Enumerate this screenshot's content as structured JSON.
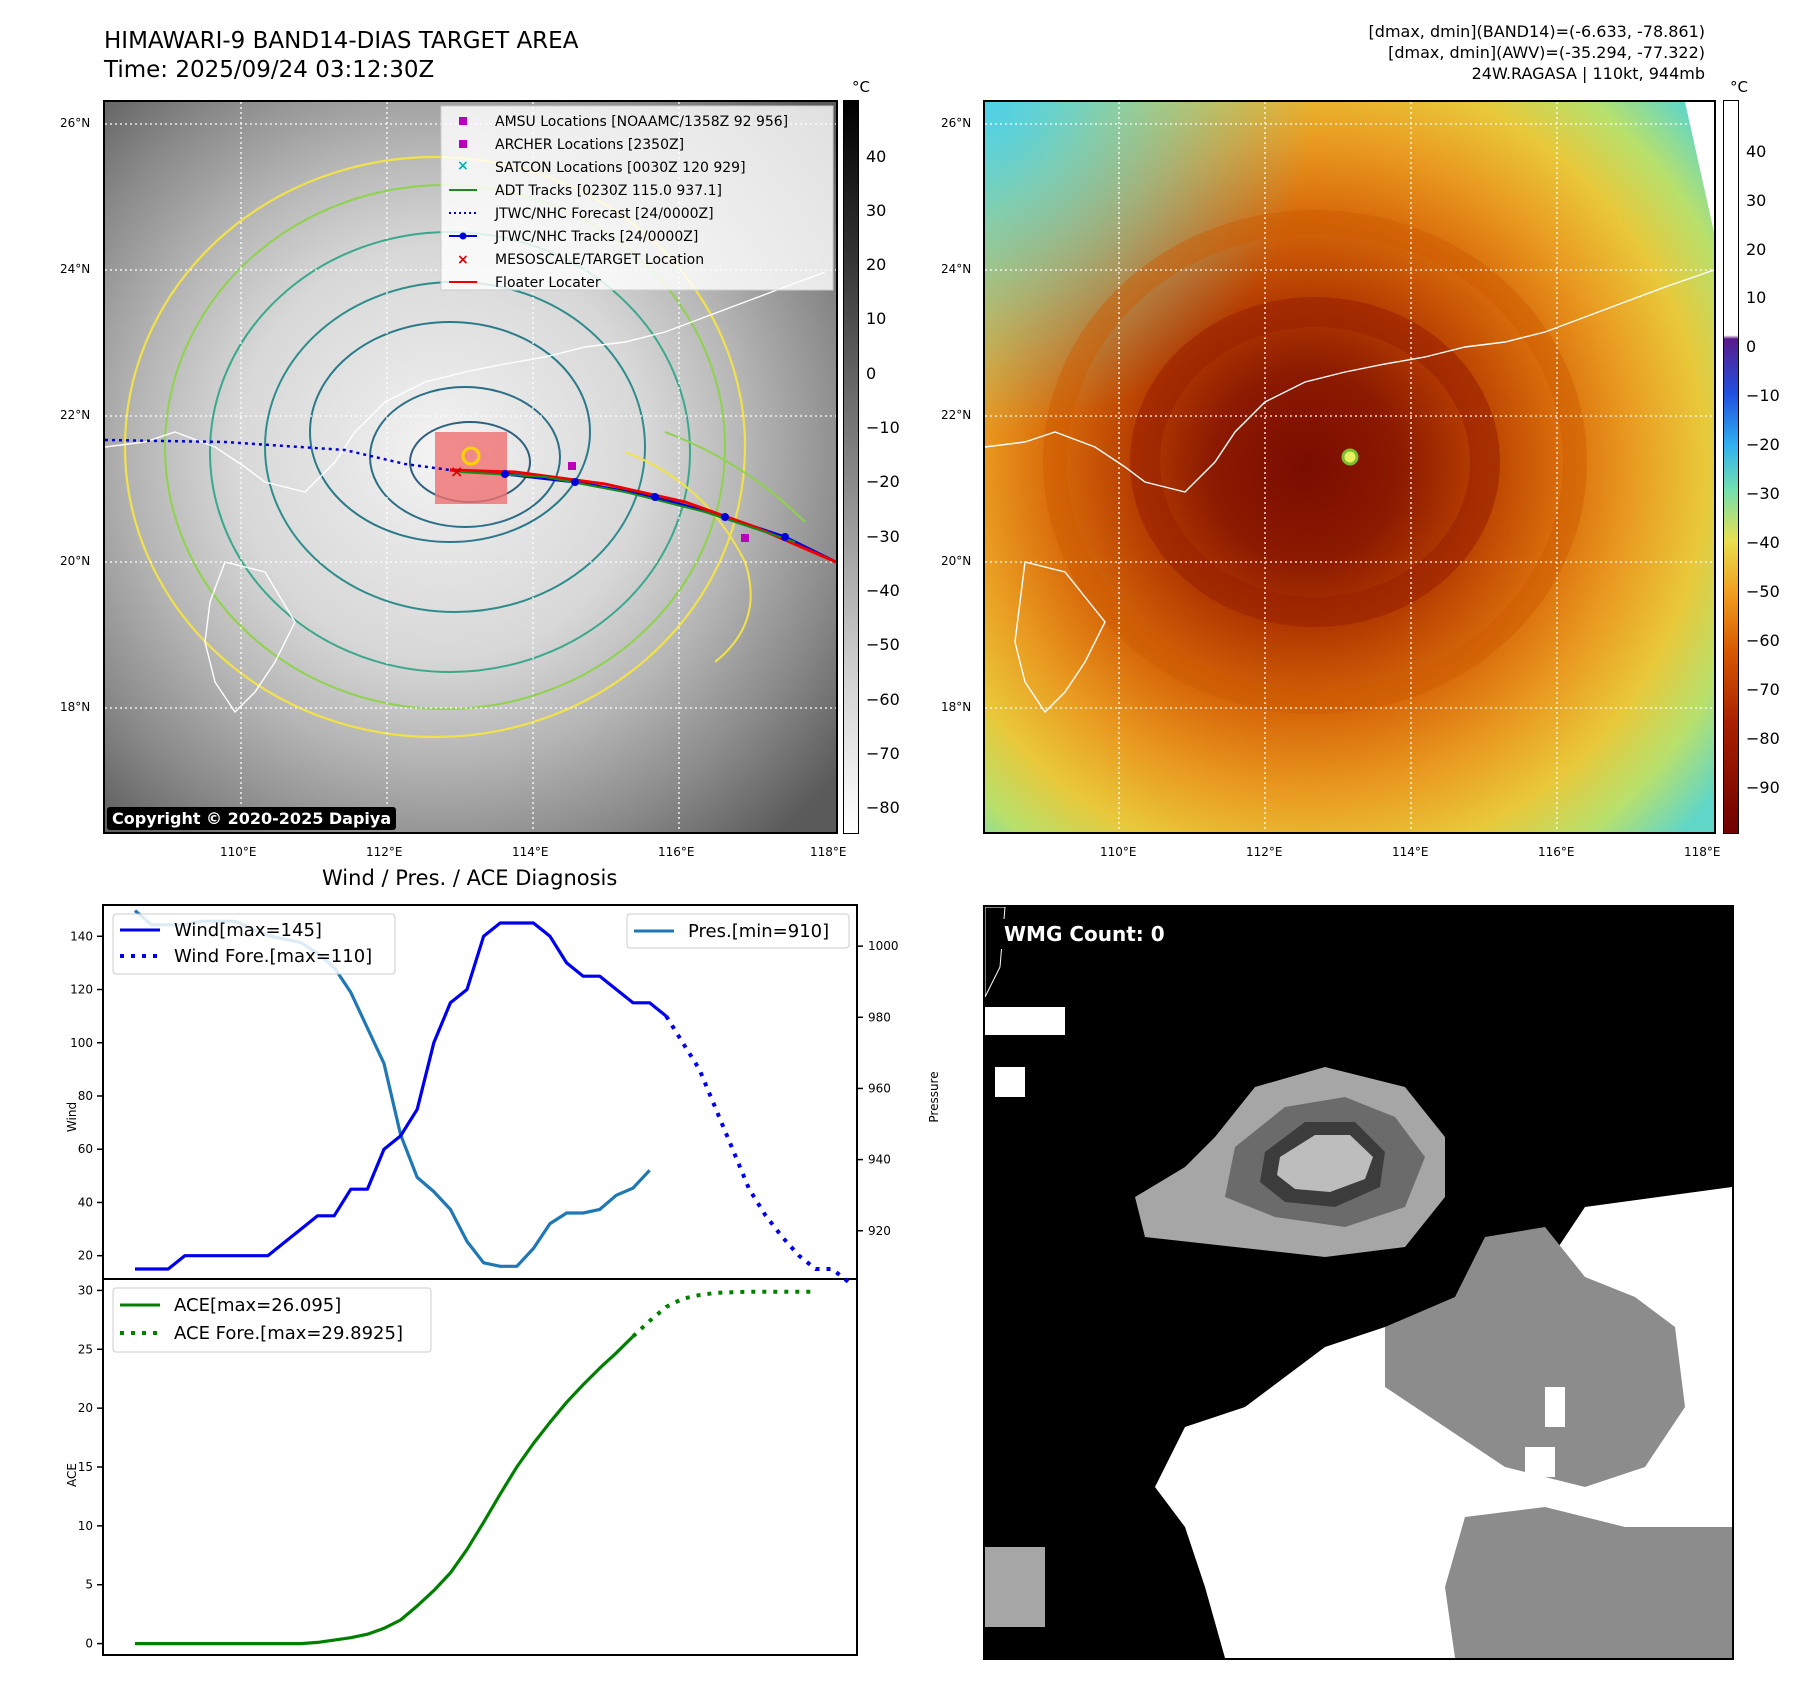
{
  "title": {
    "line1": "HIMAWARI-9 BAND14-DIAS TARGET AREA",
    "line2": "Time: 2025/09/24 03:12:30Z"
  },
  "info": {
    "line1": "[dmax, dmin](BAND14)=(-6.633, -78.861)",
    "line2": "[dmax, dmin](AWV)=(-35.294, -77.322)",
    "line3": "24W.RAGASA | 110kt, 944mb"
  },
  "map_axes": {
    "lat_labels": [
      "26°N",
      "24°N",
      "22°N",
      "20°N",
      "18°N"
    ],
    "lon_labels": [
      "110°E",
      "112°E",
      "114°E",
      "116°E",
      "118°E"
    ]
  },
  "colorbar_gray": {
    "unit": "°C",
    "ticks": [
      "40",
      "30",
      "20",
      "10",
      "0",
      "−10",
      "−20",
      "−30",
      "−40",
      "−50",
      "−60",
      "−70",
      "−80"
    ]
  },
  "colorbar_color": {
    "unit": "°C",
    "ticks": [
      "40",
      "30",
      "20",
      "10",
      "0",
      "−10",
      "−20",
      "−30",
      "−40",
      "−50",
      "−60",
      "−70",
      "−80",
      "−90"
    ]
  },
  "legend": [
    {
      "label": "AMSU Locations [NOAAMC/1358Z 92 956]",
      "marker": "square",
      "color": "#bb00bb"
    },
    {
      "label": "ARCHER Locations [2350Z]",
      "marker": "square",
      "color": "#bb00bb"
    },
    {
      "label": "SATCON Locations [0030Z 120 929]",
      "marker": "x",
      "color": "#00b5b5"
    },
    {
      "label": "ADT Tracks [0230Z 115.0 937.1]",
      "marker": "line",
      "color": "#1a8a1a"
    },
    {
      "label": "JTWC/NHC Forecast [24/0000Z]",
      "marker": "dotted",
      "color": "#0000dd"
    },
    {
      "label": "JTWC/NHC Tracks [24/0000Z]",
      "marker": "line-dot",
      "color": "#0000dd"
    },
    {
      "label": "MESOSCALE/TARGET Location",
      "marker": "x",
      "color": "#dd0000"
    },
    {
      "label": "Floater Locater",
      "marker": "line",
      "color": "#ee0000"
    }
  ],
  "copyright": "Copyright © 2020-2025 Dapiya",
  "diagnosis_title": "Wind / Pres. / ACE Diagnosis",
  "wmg_badge": "WMG Count: 0",
  "colors": {
    "wind": "#0000ee",
    "pressure": "#1f77b4",
    "ace": "#008000"
  },
  "chart_data": [
    {
      "type": "line",
      "title": "Wind / Pres. / ACE Diagnosis",
      "ylabel": "Wind",
      "ylim": [
        12,
        151
      ],
      "yticks": [
        20,
        40,
        60,
        80,
        100,
        120,
        140
      ],
      "y2label": "Pressure",
      "y2lim": [
        907,
        1011
      ],
      "y2ticks": [
        920,
        940,
        960,
        980,
        1000
      ],
      "series": [
        {
          "name": "Wind[max=145]",
          "axis": "left",
          "style": "solid",
          "values": [
            15,
            15,
            15,
            20,
            20,
            20,
            20,
            20,
            20,
            25,
            30,
            35,
            35,
            45,
            45,
            60,
            65,
            75,
            100,
            115,
            120,
            140,
            145,
            145,
            145,
            140,
            130,
            125,
            125,
            120,
            115,
            115,
            110
          ]
        },
        {
          "name": "Wind Fore.[max=110]",
          "axis": "left",
          "style": "dotted",
          "offset": 32,
          "values": [
            110,
            100,
            90,
            75,
            60,
            45,
            35,
            27,
            20,
            15,
            15,
            10
          ]
        },
        {
          "name": "Pres.[min=910]",
          "axis": "right",
          "style": "solid",
          "values": [
            1010,
            1006,
            1006,
            1006,
            1007,
            1007,
            1007,
            1005,
            1003,
            1002,
            1001,
            998,
            994,
            987,
            977,
            967,
            947,
            935,
            931,
            926,
            917,
            911,
            910,
            910,
            915,
            922,
            925,
            925,
            926,
            930,
            932,
            937
          ]
        }
      ]
    },
    {
      "type": "line",
      "ylabel": "ACE",
      "ylim": [
        -0.8,
        30.8
      ],
      "yticks": [
        0,
        5,
        10,
        15,
        20,
        25,
        30
      ],
      "series": [
        {
          "name": "ACE[max=26.095]",
          "style": "solid",
          "values": [
            0,
            0,
            0,
            0,
            0,
            0,
            0,
            0,
            0,
            0,
            0,
            0.1,
            0.3,
            0.5,
            0.8,
            1.3,
            2,
            3.2,
            4.5,
            6,
            8,
            10.3,
            12.7,
            15,
            17,
            18.8,
            20.5,
            22,
            23.4,
            24.7,
            26.095
          ]
        },
        {
          "name": "ACE Fore.[max=29.8925]",
          "style": "dotted",
          "offset": 30,
          "values": [
            26.095,
            27.4,
            28.6,
            29.3,
            29.6,
            29.8,
            29.85,
            29.88,
            29.89,
            29.8925,
            29.8925,
            29.8925
          ]
        }
      ]
    }
  ]
}
